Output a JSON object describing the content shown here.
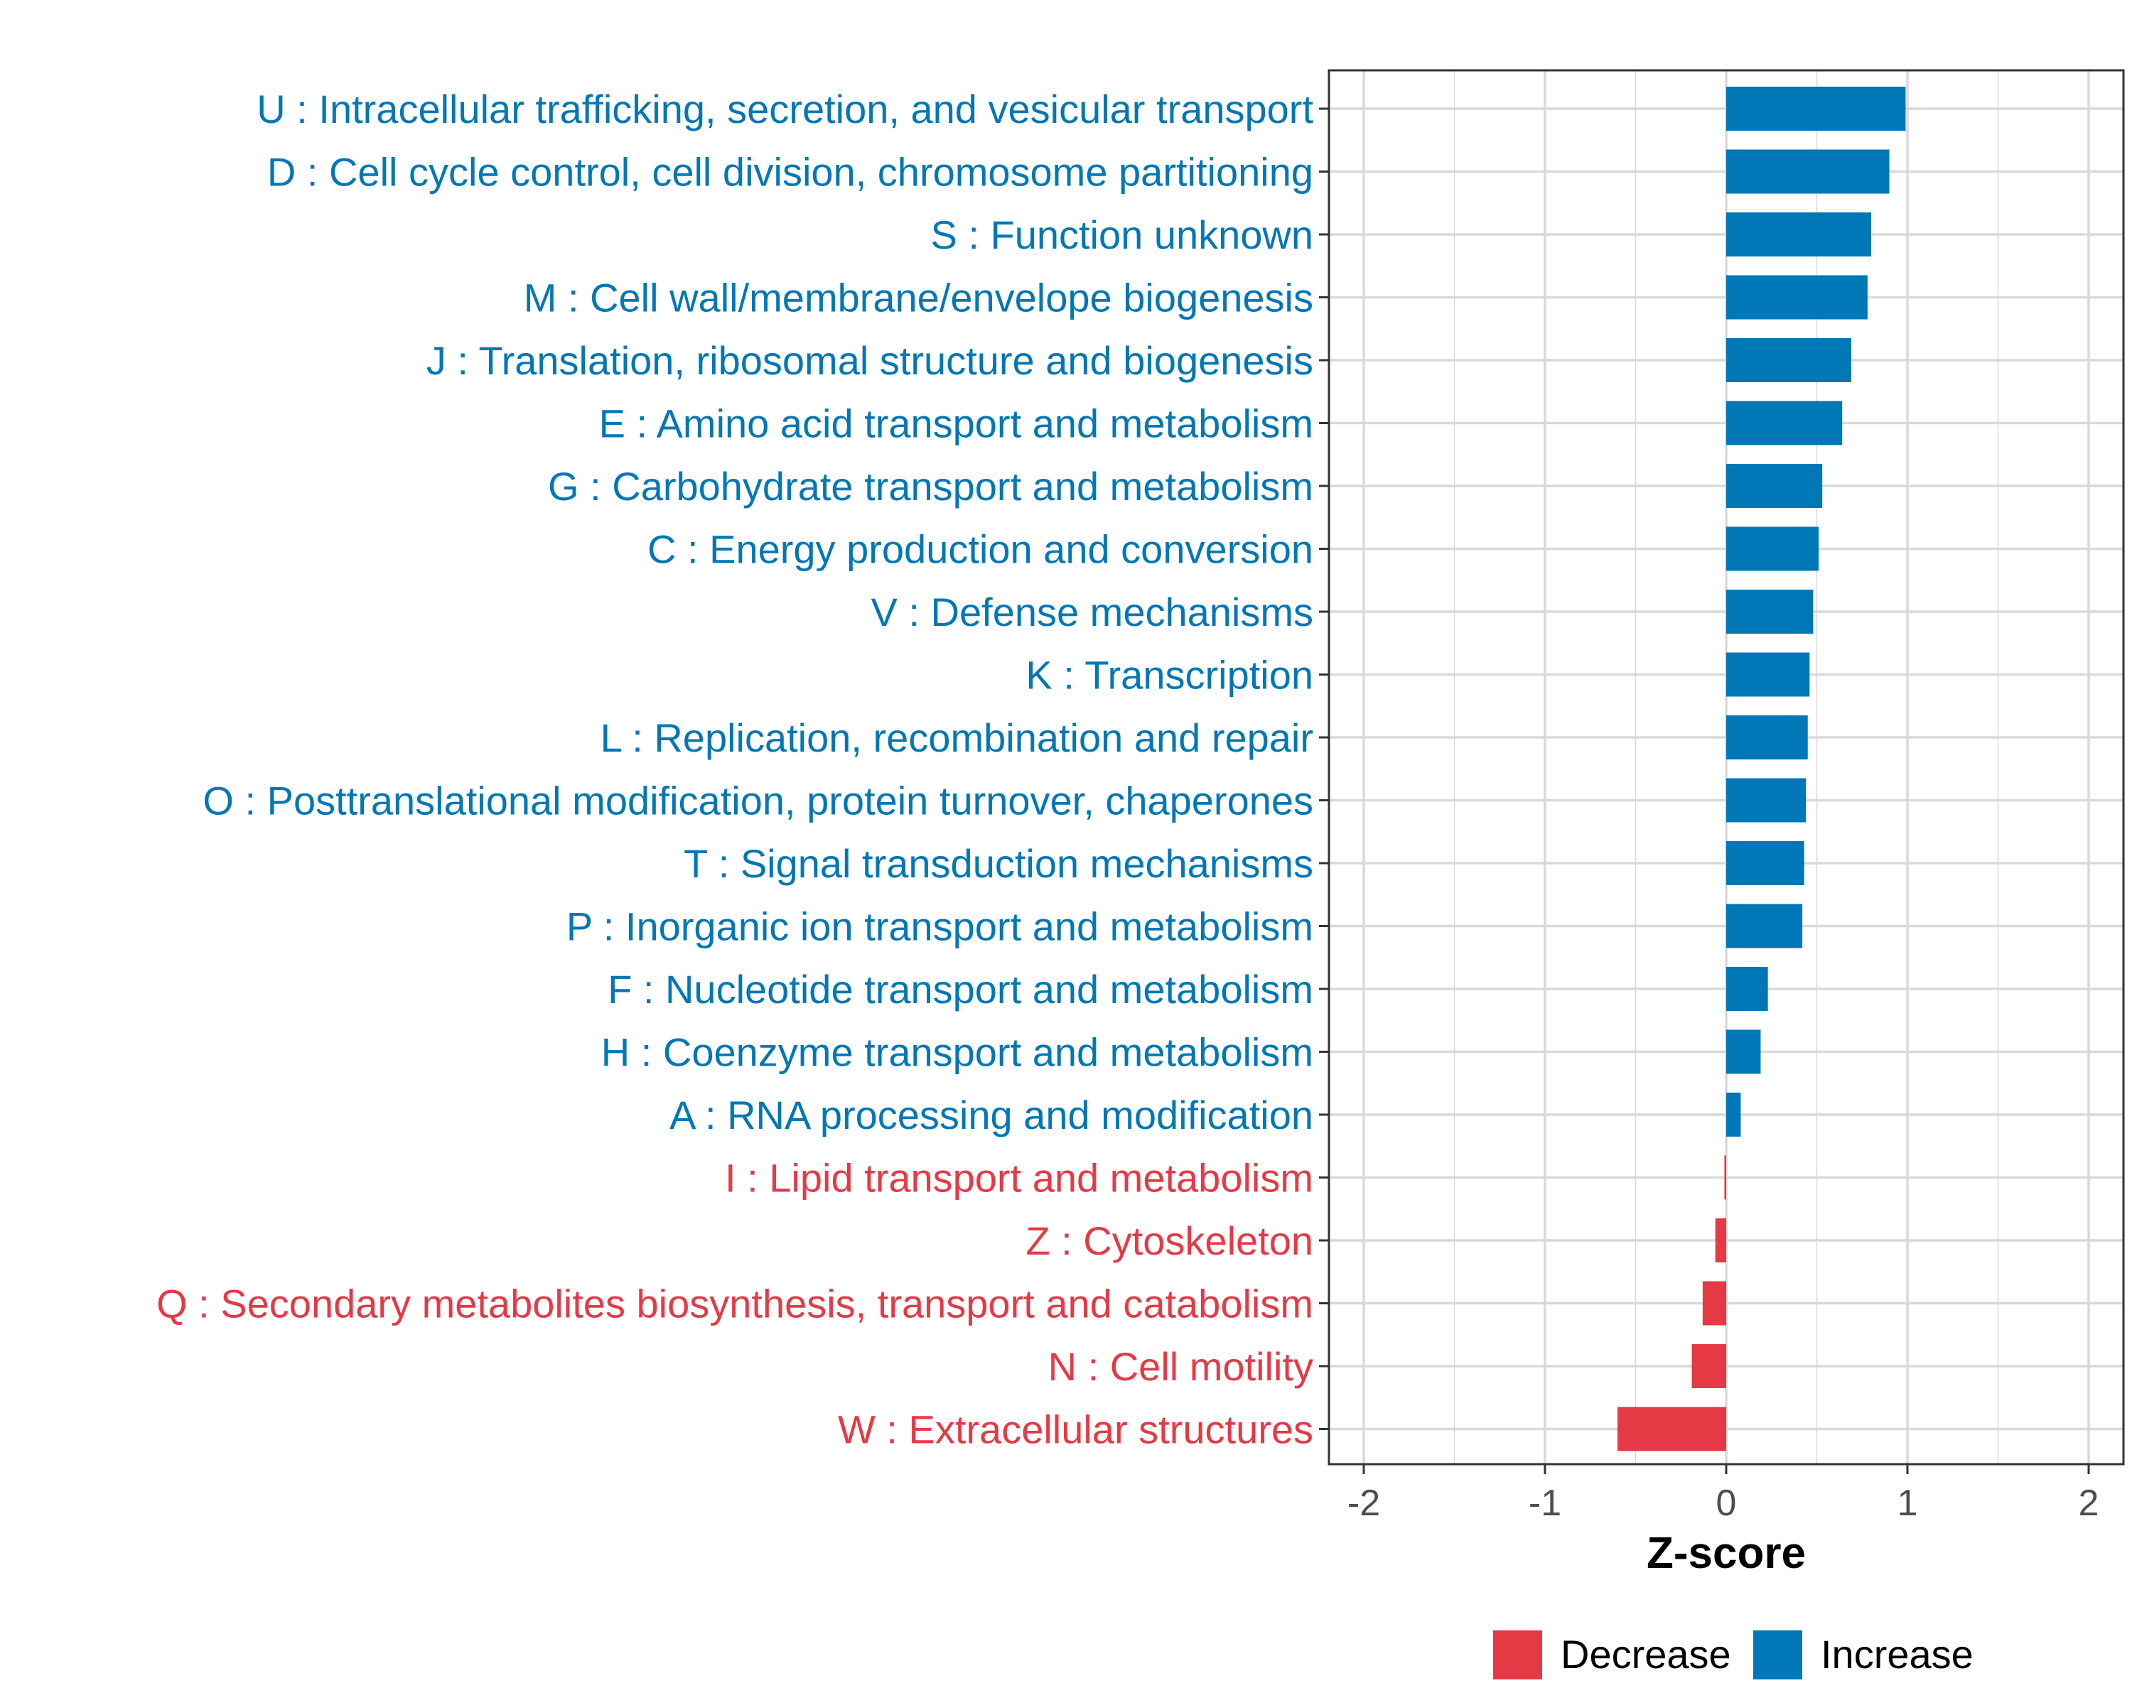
{
  "chart_data": {
    "type": "bar",
    "orientation": "horizontal",
    "title": "",
    "xlabel": "Z-score",
    "ylabel": "",
    "xlim": [
      -2.2,
      2.2
    ],
    "xticks": [
      -2,
      -1,
      0,
      1,
      2
    ],
    "xtick_labels": [
      "-2",
      "-1",
      "0",
      "1",
      "2"
    ],
    "grid": true,
    "legend_position": "bottom",
    "colors": {
      "Decrease": "#e63946",
      "Increase": "#0077b6"
    },
    "legend": [
      "Decrease",
      "Increase"
    ],
    "categories": [
      "U : Intracellular trafficking, secretion, and vesicular transport",
      "D : Cell cycle control, cell division, chromosome partitioning",
      "S : Function unknown",
      "M : Cell wall/membrane/envelope biogenesis",
      "J : Translation, ribosomal structure and biogenesis",
      "E : Amino acid transport and metabolism",
      "G : Carbohydrate transport and metabolism",
      "C : Energy production and conversion",
      "V : Defense mechanisms",
      "K : Transcription",
      "L : Replication, recombination and repair",
      "O : Posttranslational modification, protein turnover, chaperones",
      "T : Signal transduction mechanisms",
      "P : Inorganic ion transport and metabolism",
      "F : Nucleotide transport and metabolism",
      "H : Coenzyme transport and metabolism",
      "A : RNA processing and modification",
      "I : Lipid transport and metabolism",
      "Z : Cytoskeleton",
      "Q : Secondary metabolites biosynthesis, transport and catabolism",
      "N : Cell motility",
      "W : Extracellular structures"
    ],
    "values": [
      0.99,
      0.9,
      0.8,
      0.78,
      0.69,
      0.64,
      0.53,
      0.51,
      0.48,
      0.46,
      0.45,
      0.44,
      0.43,
      0.42,
      0.23,
      0.19,
      0.08,
      -0.01,
      -0.06,
      -0.13,
      -0.19,
      -0.6
    ],
    "groups": [
      "Increase",
      "Increase",
      "Increase",
      "Increase",
      "Increase",
      "Increase",
      "Increase",
      "Increase",
      "Increase",
      "Increase",
      "Increase",
      "Increase",
      "Increase",
      "Increase",
      "Increase",
      "Increase",
      "Increase",
      "Decrease",
      "Decrease",
      "Decrease",
      "Decrease",
      "Decrease"
    ]
  }
}
